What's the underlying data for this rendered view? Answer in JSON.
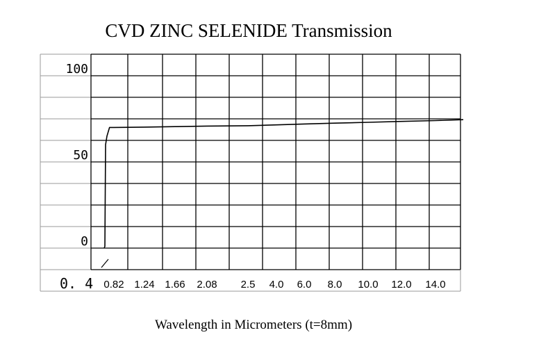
{
  "chart_data": {
    "type": "line",
    "title": "CVD ZINC SELENIDE Transmission",
    "xlabel": "Wavelength in Micrometers (t=8mm)",
    "ylabel": "",
    "origin_label": "0. 4",
    "x_tick_labels": [
      "0.82",
      "1.24",
      "1.66",
      "2.08",
      "2.5",
      "4.0",
      "6.0",
      "8.0",
      "10.0",
      "12.0",
      "14.0"
    ],
    "y_ticks": [
      {
        "value": 100,
        "label": "100"
      },
      {
        "value": 50,
        "label": "50"
      },
      {
        "value": 0,
        "label": "0"
      }
    ],
    "ylim": [
      0,
      100
    ],
    "x_scale": "piecewise-categorical",
    "grid": true,
    "series": [
      {
        "color": "#000000",
        "points": [
          {
            "x": 0.4,
            "y": 0
          },
          {
            "x": 0.43,
            "y": 1
          },
          {
            "x": 0.46,
            "y": 60
          },
          {
            "x": 0.52,
            "y": 65
          },
          {
            "x": 0.63,
            "y": 70
          },
          {
            "x": 0.82,
            "y": 70
          },
          {
            "x": 1.24,
            "y": 70.2
          },
          {
            "x": 1.66,
            "y": 70.5
          },
          {
            "x": 2.08,
            "y": 70.8
          },
          {
            "x": 2.5,
            "y": 71
          },
          {
            "x": 4.0,
            "y": 71.5
          },
          {
            "x": 6.0,
            "y": 72
          },
          {
            "x": 8.0,
            "y": 72.5
          },
          {
            "x": 10.0,
            "y": 73
          },
          {
            "x": 12.0,
            "y": 73.5
          },
          {
            "x": 14.0,
            "y": 74
          },
          {
            "x": 15.0,
            "y": 74.5
          }
        ]
      }
    ]
  }
}
